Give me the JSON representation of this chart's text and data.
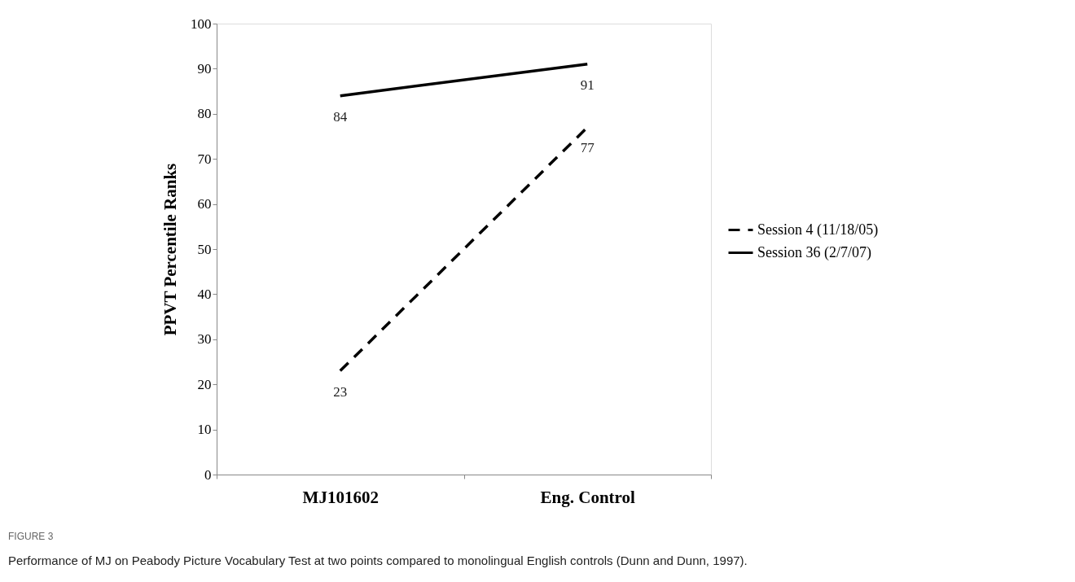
{
  "chart_data": {
    "type": "line",
    "ylabel": "PPVT Percentile Ranks",
    "categories": [
      "MJ101602",
      "Eng. Control"
    ],
    "series": [
      {
        "name": "Session 4 (11/18/05)",
        "color": "#000000",
        "line_style": "dashed",
        "values": [
          23,
          77
        ]
      },
      {
        "name": "Session 36 (2/7/07)",
        "color": "#000000",
        "line_style": "solid",
        "values": [
          84,
          91
        ]
      }
    ],
    "ylim": [
      0,
      100
    ],
    "yticks": [
      0,
      10,
      20,
      30,
      40,
      50,
      60,
      70,
      80,
      90,
      100
    ],
    "grid": false,
    "legend": "right",
    "data_labels": true,
    "marker": "none",
    "annotations": [
      "FIGURE 3",
      "Performance of MJ on Peabody Picture Vocabulary Test at two points compared to monolingual English controls (Dunn and Dunn, 1997)."
    ]
  }
}
